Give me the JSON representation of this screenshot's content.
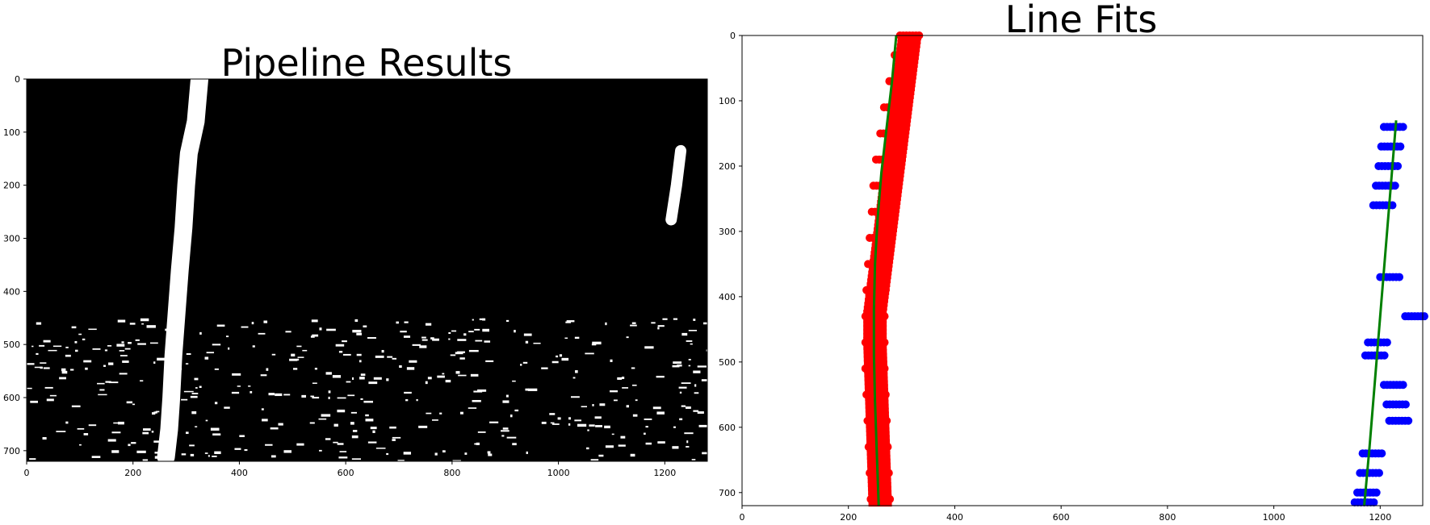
{
  "chart_data": [
    {
      "type": "image",
      "title": "Pipeline Results",
      "xlim": [
        0,
        1280
      ],
      "ylim": [
        720,
        0
      ],
      "xticks": [
        0,
        200,
        400,
        600,
        800,
        1000,
        1200
      ],
      "yticks": [
        0,
        100,
        200,
        300,
        400,
        500,
        600,
        700
      ],
      "background": "#000000",
      "foreground": "#ffffff",
      "lane_lines": [
        {
          "name": "left",
          "x": [
            325,
            318,
            305,
            300,
            295,
            288,
            282,
            276,
            272,
            268,
            262
          ],
          "y": [
            0,
            80,
            140,
            200,
            280,
            360,
            440,
            520,
            600,
            660,
            712
          ]
        },
        {
          "name": "right",
          "x": [
            1230,
            1222,
            1212
          ],
          "y": [
            135,
            200,
            265
          ]
        }
      ]
    },
    {
      "type": "scatter",
      "title": "Line Fits",
      "xlim": [
        0,
        1280
      ],
      "ylim": [
        720,
        0
      ],
      "xticks": [
        0,
        200,
        400,
        600,
        800,
        1000,
        1200
      ],
      "yticks": [
        0,
        100,
        200,
        300,
        400,
        500,
        600,
        700
      ],
      "series": [
        {
          "color": "#ff0000",
          "points": [
            [
              315,
              0
            ],
            [
              305,
              30
            ],
            [
              295,
              70
            ],
            [
              285,
              110
            ],
            [
              278,
              150
            ],
            [
              270,
              190
            ],
            [
              265,
              230
            ],
            [
              262,
              270
            ],
            [
              258,
              310
            ],
            [
              255,
              350
            ],
            [
              252,
              390
            ],
            [
              250,
              430
            ],
            [
              250,
              470
            ],
            [
              250,
              510
            ],
            [
              252,
              550
            ],
            [
              254,
              590
            ],
            [
              256,
              630
            ],
            [
              258,
              670
            ],
            [
              260,
              710
            ]
          ]
        },
        {
          "color": "#0000ff",
          "points": [
            [
              1225,
              140
            ],
            [
              1220,
              170
            ],
            [
              1215,
              200
            ],
            [
              1210,
              230
            ],
            [
              1205,
              260
            ],
            [
              1195,
              470
            ],
            [
              1190,
              490
            ],
            [
              1225,
              535
            ],
            [
              1230,
              565
            ],
            [
              1235,
              590
            ],
            [
              1185,
              640
            ],
            [
              1180,
              670
            ],
            [
              1175,
              700
            ],
            [
              1170,
              715
            ],
            [
              1265,
              430
            ],
            [
              1218,
              370
            ]
          ]
        },
        {
          "color": "#008000",
          "kind": "line",
          "x": [
            290,
            282,
            272,
            262,
            255,
            250,
            248,
            248,
            250,
            253,
            257
          ],
          "y": [
            0,
            70,
            140,
            210,
            280,
            350,
            420,
            490,
            560,
            630,
            720
          ]
        },
        {
          "color": "#008000",
          "kind": "line",
          "x": [
            1230,
            1220,
            1210,
            1200,
            1190,
            1180,
            1170
          ],
          "y": [
            130,
            230,
            330,
            430,
            530,
            630,
            720
          ]
        }
      ]
    }
  ]
}
